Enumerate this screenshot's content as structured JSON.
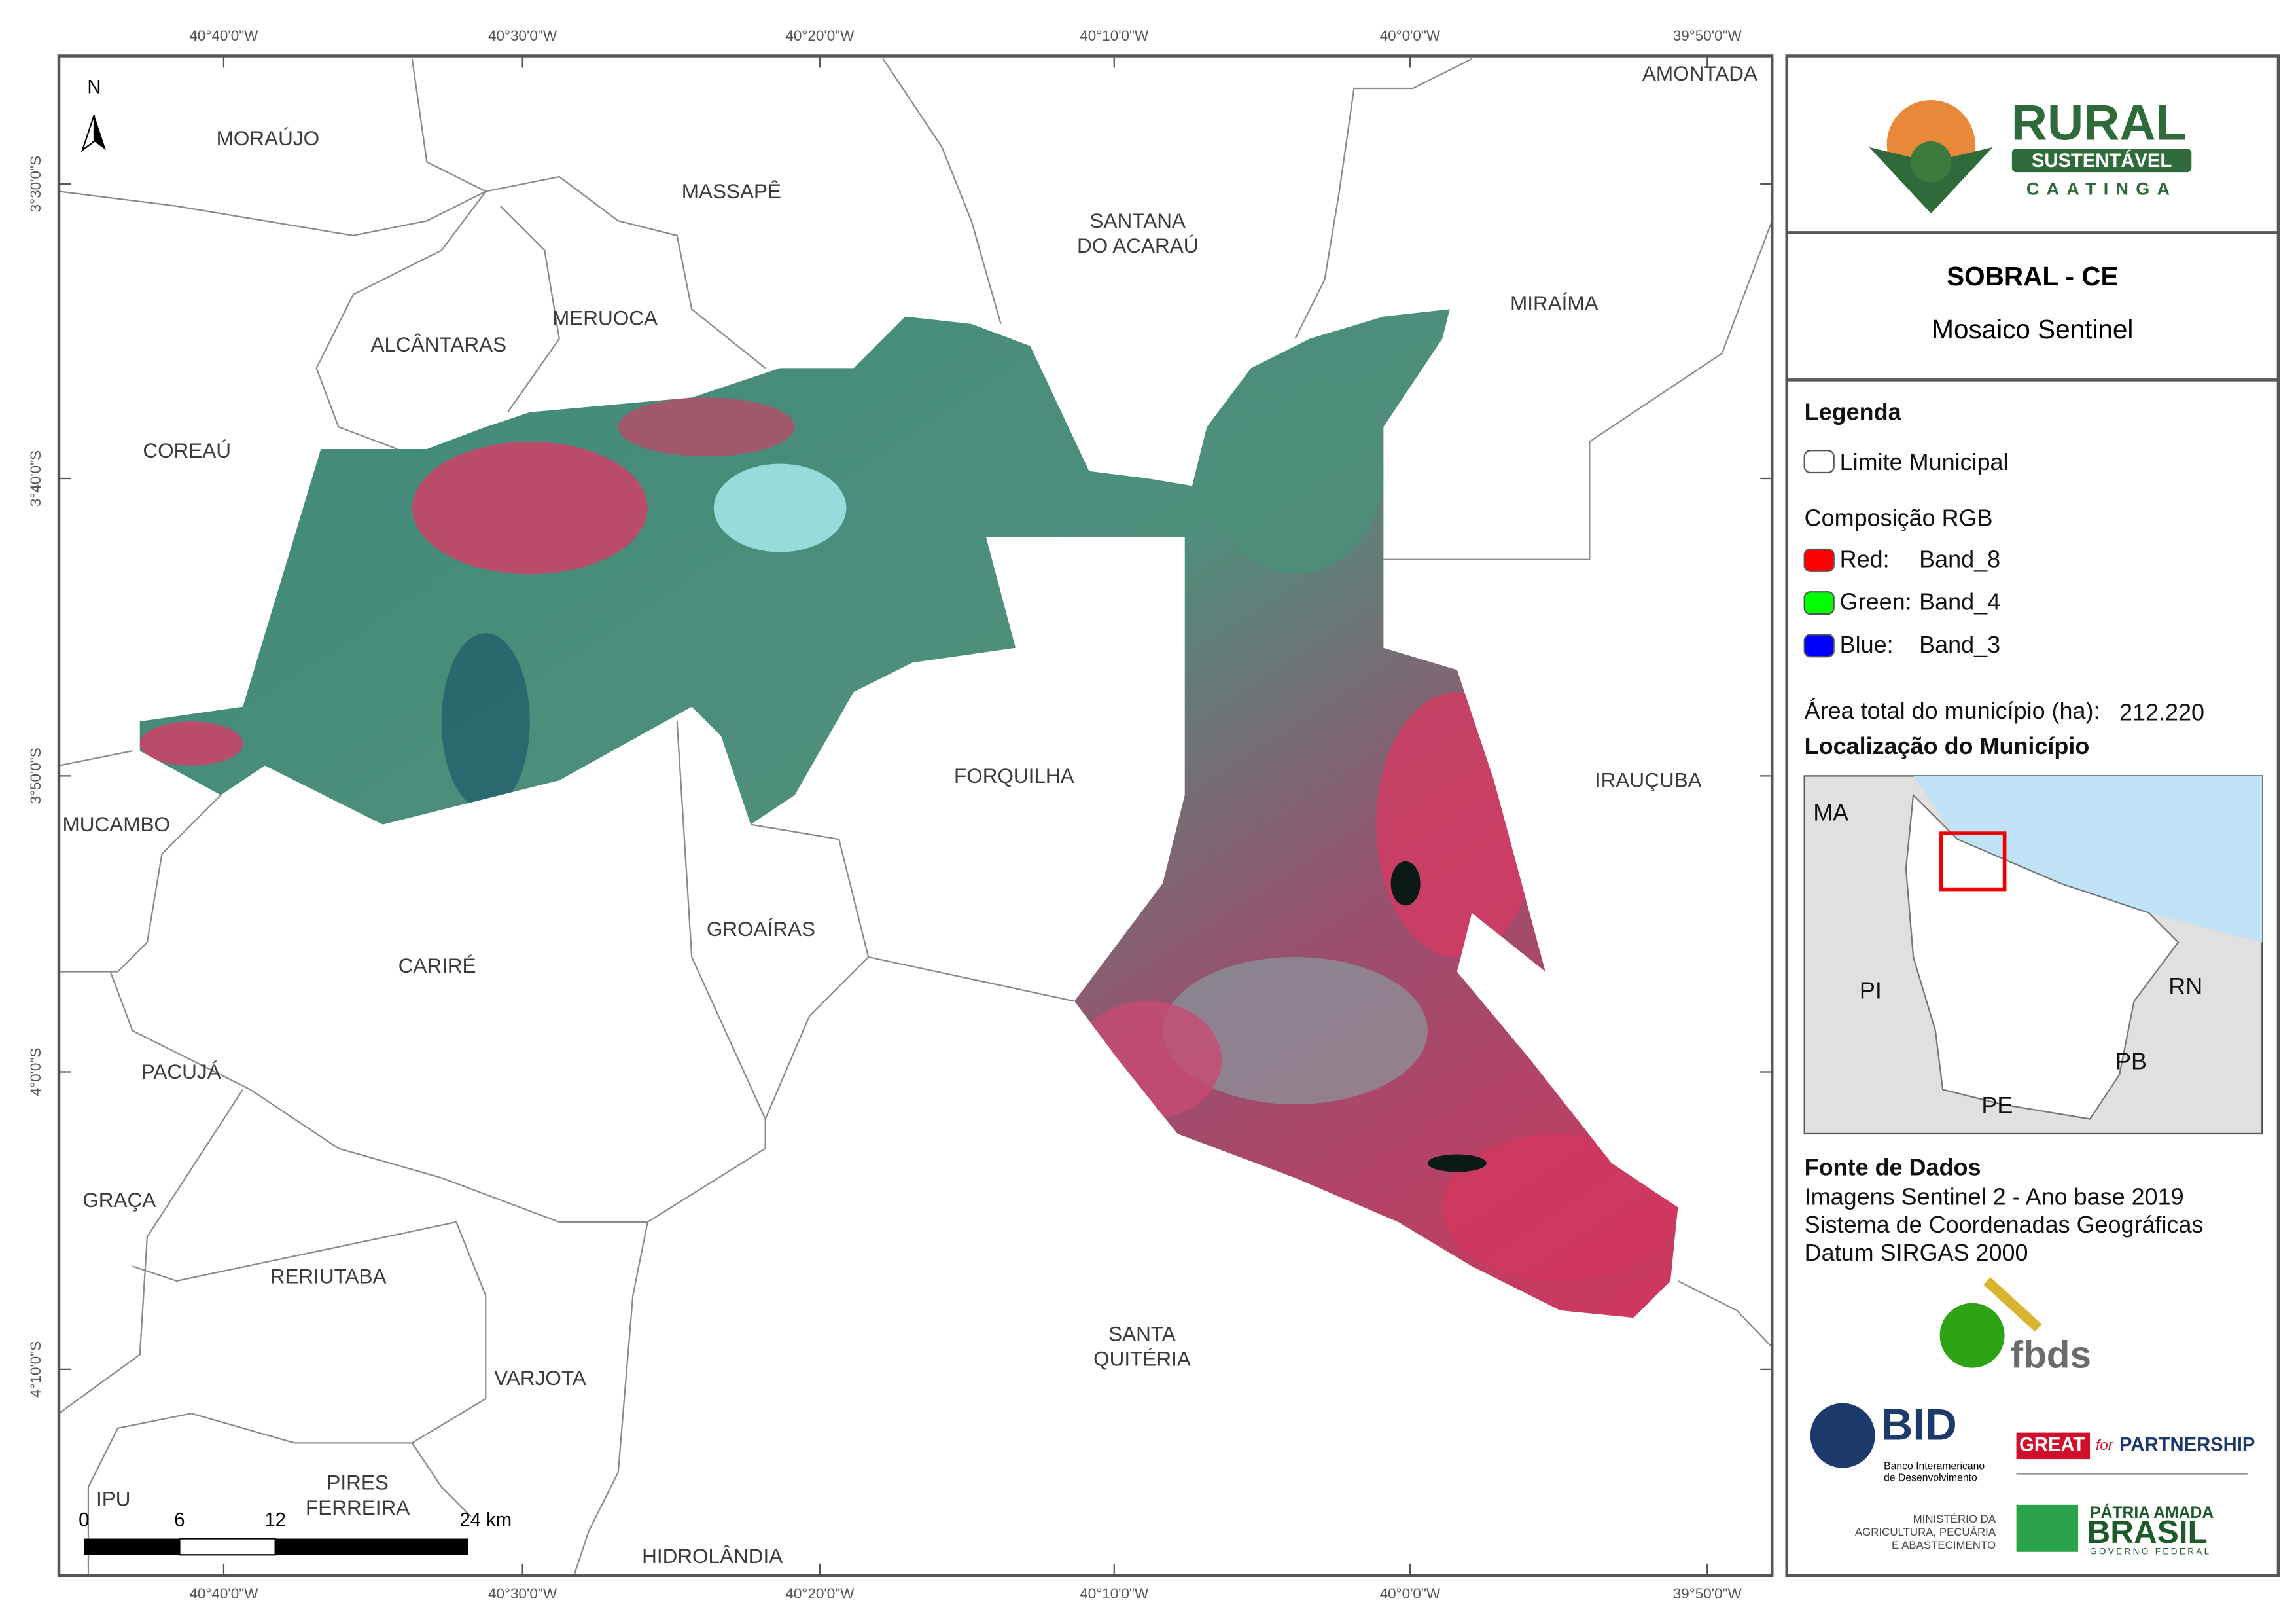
{
  "map": {
    "north": "N",
    "grid": {
      "lon": [
        "40°40'0\"W",
        "40°30'0\"W",
        "40°20'0\"W",
        "40°10'0\"W",
        "40°0'0\"W",
        "39°50'0\"W"
      ],
      "lat": [
        "3°30'0\"S",
        "3°40'0\"S",
        "3°50'0\"S",
        "4°0'0\"S",
        "4°10'0\"S"
      ]
    },
    "municipalities": [
      [
        "MORAÚJO"
      ],
      [
        "MASSAPÊ"
      ],
      [
        "SANTANA",
        "DO ACARAÚ"
      ],
      [
        "MIRAÍMA"
      ],
      [
        "AMONTADA"
      ],
      [
        "ALCÂNTARAS"
      ],
      [
        "MERUOCA"
      ],
      [
        "COREAÚ"
      ],
      [
        "MUCAMBO"
      ],
      [
        "FORQUILHA"
      ],
      [
        "IRAUÇUBA"
      ],
      [
        "GROAÍRAS"
      ],
      [
        "CARIRÉ"
      ],
      [
        "PACUJÁ"
      ],
      [
        "GRAÇA"
      ],
      [
        "RERIUTABA"
      ],
      [
        "SANTA",
        "QUITÉRIA"
      ],
      [
        "VARJOTA"
      ],
      [
        "IPU"
      ],
      [
        "PIRES",
        "FERREIRA"
      ],
      [
        "HIDROLÂNDIA"
      ]
    ],
    "scale": [
      "0",
      "6",
      "12",
      "24 km"
    ]
  },
  "panel": {
    "logo": [
      "RURAL",
      "SUSTENTÁVEL",
      "CAATINGA"
    ],
    "title": "SOBRAL - CE",
    "subtitle": "Mosaico Sentinel",
    "legend_title": "Legenda",
    "boundary": "Limite Municipal",
    "rgb_title": "Composição RGB",
    "rgb": [
      {
        "label": "Red:",
        "band": "Band_8",
        "color": "#ff0000"
      },
      {
        "label": "Green:",
        "band": "Band_4",
        "color": "#00ff00"
      },
      {
        "label": "Blue:",
        "band": "Band_3",
        "color": "#0000ff"
      }
    ],
    "area_label": "Área total do município (ha):",
    "area_value": "212.220",
    "location_title": "Localização do Município",
    "inset": [
      "MA",
      "PI",
      "RN",
      "PB",
      "PE"
    ],
    "sources_title": "Fonte de Dados",
    "sources": [
      "Imagens Sentinel 2 - Ano base 2019",
      "Sistema de Coordenadas Geográficas",
      "Datum SIRGAS 2000"
    ],
    "fbds": "fbds",
    "bid": [
      "BID",
      "Banco Interamericano",
      "de Desenvolvimento"
    ],
    "great": [
      "GREAT",
      "for",
      "PARTNERSHIP"
    ],
    "ministry": [
      "MINISTÉRIO DA",
      "AGRICULTURA, PECUÁRIA",
      "E ABASTECIMENTO"
    ],
    "brasil": [
      "PÁTRIA AMADA",
      "BRASIL",
      "GOVERNO FEDERAL"
    ]
  }
}
